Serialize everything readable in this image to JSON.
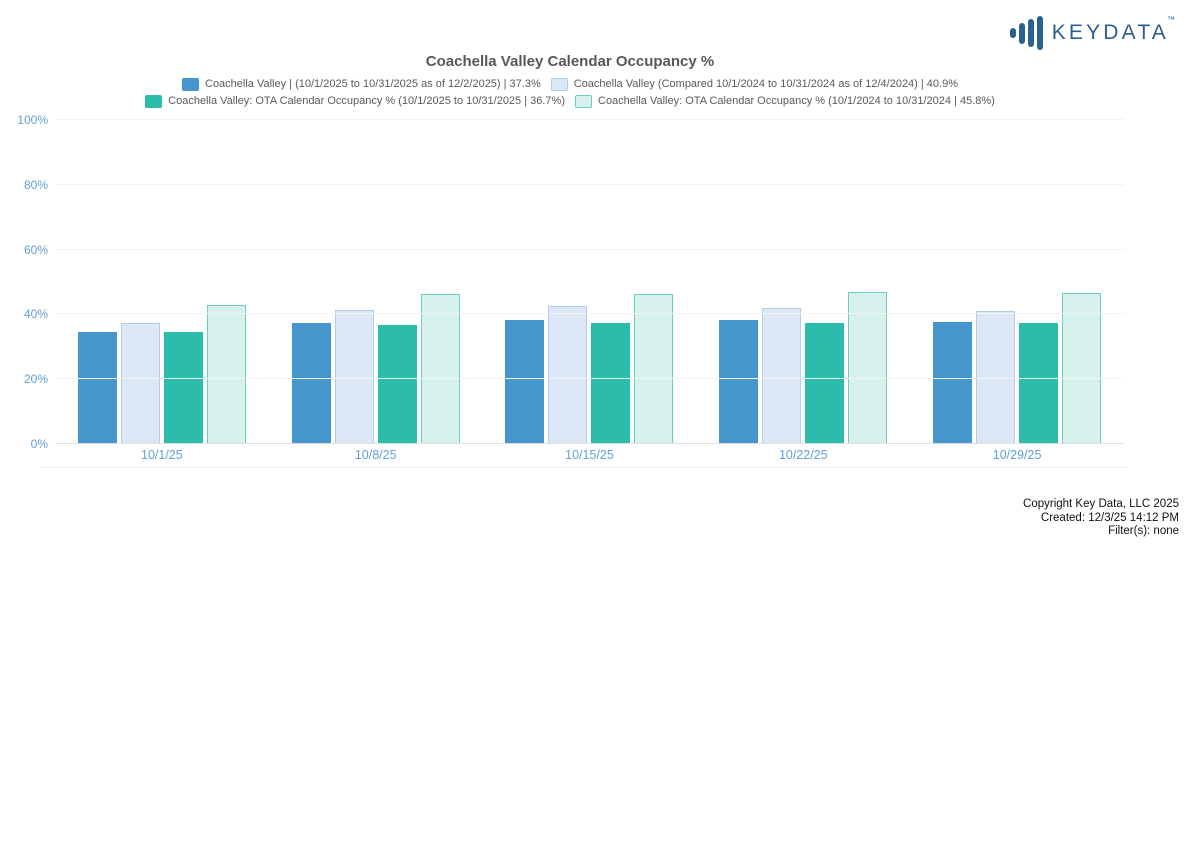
{
  "logo": {
    "text": "KEYDATA",
    "tm": "™"
  },
  "title": "Coachella Valley Calendar Occupancy %",
  "footer": {
    "copyright": "Copyright Key Data, LLC 2025",
    "created": "Created: 12/3/25 14:12 PM",
    "filters": "Filter(s): none"
  },
  "chart_data": {
    "type": "bar",
    "title": "Coachella Valley Calendar Occupancy %",
    "categories": [
      "10/1/25",
      "10/8/25",
      "10/15/25",
      "10/22/25",
      "10/29/25"
    ],
    "series": [
      {
        "name": "Coachella Valley | (10/1/2025 to 10/31/2025 as of 12/2/2025) | 37.3%",
        "color": "#4596cc",
        "border": "#4596cc",
        "values": [
          34.7,
          37.5,
          38.3,
          38.2,
          37.8
        ]
      },
      {
        "name": "Coachella Valley (Compared 10/1/2024 to 10/31/2024 as of 12/4/2024) | 40.9%",
        "color": "#dce8f5",
        "border": "#aecde9",
        "values": [
          37.4,
          41.3,
          42.5,
          42.1,
          41.0
        ]
      },
      {
        "name": "Coachella Valley: OTA Calendar Occupancy % (10/1/2025 to 10/31/2025 | 36.7%)",
        "color": "#2bbcaa",
        "border": "#2bbcaa",
        "values": [
          34.6,
          36.6,
          37.3,
          37.4,
          37.3
        ]
      },
      {
        "name": "Coachella Valley: OTA Calendar Occupancy % (10/1/2024 to 10/31/2024 | 45.8%)",
        "color": "#d7f1ec",
        "border": "#6bcfbf",
        "values": [
          42.9,
          46.2,
          46.3,
          46.9,
          46.6
        ]
      }
    ],
    "yticks": [
      "0%",
      "20%",
      "40%",
      "60%",
      "80%",
      "100%"
    ],
    "ylim": [
      0,
      100
    ],
    "grid": true,
    "legend_position": "top",
    "xlabel": "",
    "ylabel": ""
  }
}
